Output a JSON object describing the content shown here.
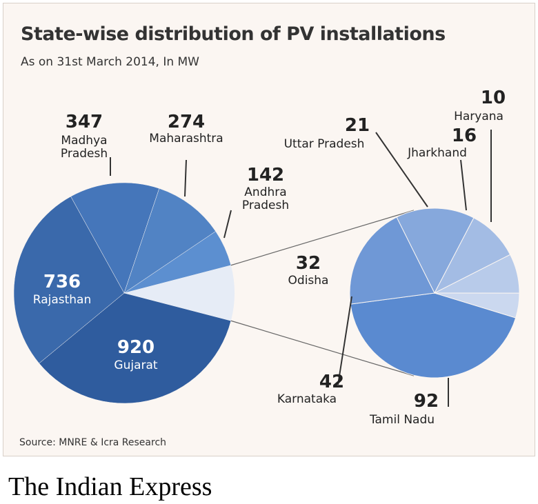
{
  "chart_data": {
    "type": "pie-of-pie",
    "title": "State-wise distribution of PV installations",
    "subtitle": "As on 31st March 2014, In MW",
    "source": "Source: MNRE & Icra Research",
    "categories": [
      "Gujarat",
      "Rajasthan",
      "Madhya Pradesh",
      "Maharashtra",
      "Andhra Pradesh"
    ],
    "values": [
      920,
      736,
      347,
      274,
      142
    ],
    "colors": [
      "#2f5c9e",
      "#3a69ab",
      "#4576ba",
      "#5183c4",
      "#5c8fd0"
    ],
    "secondary": {
      "categories": [
        "Tamil Nadu",
        "Karnataka",
        "Odisha",
        "Uttar Pradesh",
        "Jharkhand",
        "Haryana"
      ],
      "values": [
        92,
        42,
        32,
        21,
        16,
        10
      ],
      "colors": [
        "#5a8ad0",
        "#6f98d6",
        "#86a8dc",
        "#a3bce4",
        "#b8cbea",
        "#cbd8ef"
      ]
    }
  },
  "footer": "The Indian Express"
}
